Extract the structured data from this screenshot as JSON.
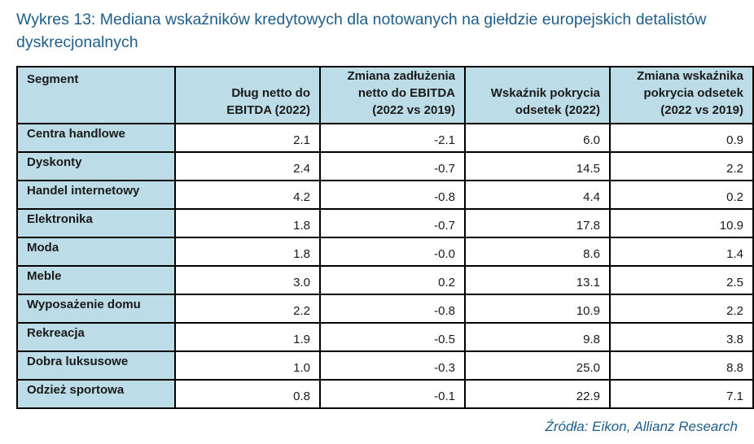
{
  "title": "Wykres 13: Mediana wskaźników kredytowych dla notowanych na giełdzie europejskich detalistów dyskrecjonalnych",
  "table": {
    "headers": [
      "Segment",
      "Dług netto do EBITDA (2022)",
      "Zmiana zadłużenia netto do EBITDA (2022 vs 2019)",
      "Wskaźnik pokrycia odsetek (2022)",
      "Zmiana wskaźnika pokrycia odsetek (2022 vs 2019)"
    ],
    "rows": [
      [
        "Centra handlowe",
        "2.1",
        "-2.1",
        "6.0",
        "0.9"
      ],
      [
        "Dyskonty",
        "2.4",
        "-0.7",
        "14.5",
        "2.2"
      ],
      [
        "Handel internetowy",
        "4.2",
        "-0.8",
        "4.4",
        "0.2"
      ],
      [
        "Elektronika",
        "1.8",
        "-0.7",
        "17.8",
        "10.9"
      ],
      [
        "Moda",
        "1.8",
        "-0.0",
        "8.6",
        "1.4"
      ],
      [
        "Meble",
        "3.0",
        "0.2",
        "13.1",
        "2.5"
      ],
      [
        "Wyposażenie domu",
        "2.2",
        "-0.8",
        "10.9",
        "2.2"
      ],
      [
        "Rekreacja",
        "1.9",
        "-0.5",
        "9.8",
        "3.8"
      ],
      [
        "Dobra luksusowe",
        "1.0",
        "-0.3",
        "25.0",
        "8.8"
      ],
      [
        "Odzież sportowa",
        "0.8",
        "-0.1",
        "22.9",
        "7.1"
      ]
    ]
  },
  "source": "Źródła: Eikon, Allianz Research",
  "colors": {
    "header_fill": "#bcdde8",
    "title_color": "#1f5d8a",
    "border": "#000000"
  }
}
